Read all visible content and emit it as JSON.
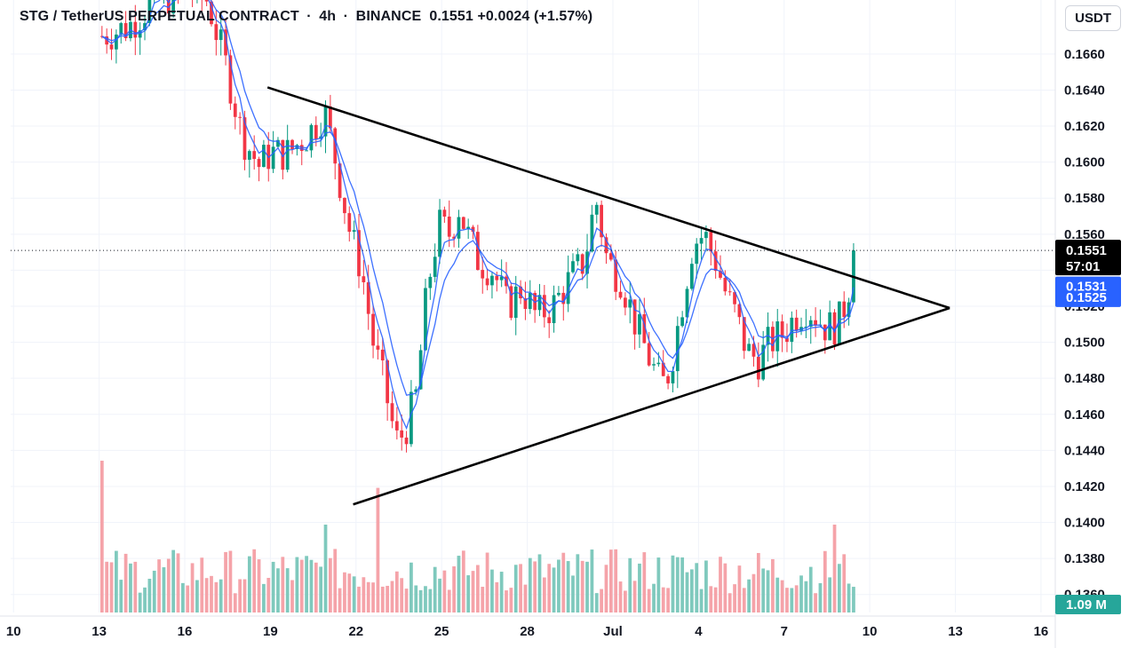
{
  "header": {
    "symbol": "STG / TetherUS PERPETUAL CONTRACT",
    "interval": "4h",
    "exchange": "BINANCE",
    "last": "0.1551",
    "change": "+0.0024",
    "change_pct": "(+1.57%)"
  },
  "currency_button": "USDT",
  "colors": {
    "up": "#089981",
    "down": "#f23645",
    "up_vol": "#7fc9bd",
    "down_vol": "#f5a3a9",
    "ma": "#2962ff",
    "trendline": "#000000",
    "price_tag": "#000000",
    "ma_tag": "#2962ff"
  },
  "price_tags": {
    "last_price": "0.1551",
    "countdown": "57:01",
    "ma_fast": "0.1531",
    "ma_slow": "0.1525",
    "volume": "1.09 M"
  },
  "chart_data": {
    "type": "candlestick",
    "title": "STG / TetherUS PERPETUAL CONTRACT · 4h · BINANCE",
    "y_ticks": [
      "0.1360",
      "0.1380",
      "0.1400",
      "0.1420",
      "0.1440",
      "0.1460",
      "0.1480",
      "0.1500",
      "0.1520",
      "0.1540",
      "0.1560",
      "0.1580",
      "0.1600",
      "0.1620",
      "0.1640",
      "0.1660"
    ],
    "ylim": [
      0.135,
      0.169
    ],
    "x_ticks": [
      "10",
      "13",
      "16",
      "19",
      "22",
      "25",
      "28",
      "Jul",
      "4",
      "7",
      "10",
      "13",
      "16"
    ],
    "x_tick_days": [
      10,
      13,
      16,
      19,
      22,
      25,
      28,
      31,
      34,
      37,
      40,
      43,
      46
    ],
    "xlim_days": [
      9.9,
      46.5
    ],
    "last_price_line": 0.1551,
    "ma_last": [
      0.1531,
      0.1525
    ],
    "waypoints": [
      [
        13.1,
        0.167
      ],
      [
        14.0,
        0.1675
      ],
      [
        15.0,
        0.169
      ],
      [
        16.2,
        0.1695
      ],
      [
        16.8,
        0.169
      ],
      [
        17.5,
        0.165
      ],
      [
        18.0,
        0.1615
      ],
      [
        18.6,
        0.1598
      ],
      [
        19.0,
        0.1605
      ],
      [
        19.6,
        0.1605
      ],
      [
        20.3,
        0.1615
      ],
      [
        20.9,
        0.1628
      ],
      [
        21.3,
        0.16
      ],
      [
        21.8,
        0.156
      ],
      [
        22.2,
        0.154
      ],
      [
        22.6,
        0.15
      ],
      [
        23.0,
        0.1475
      ],
      [
        23.4,
        0.1445
      ],
      [
        23.7,
        0.145
      ],
      [
        24.1,
        0.147
      ],
      [
        24.5,
        0.153
      ],
      [
        24.9,
        0.1565
      ],
      [
        25.3,
        0.156
      ],
      [
        25.6,
        0.1575
      ],
      [
        25.9,
        0.156
      ],
      [
        26.3,
        0.1545
      ],
      [
        26.8,
        0.154
      ],
      [
        27.3,
        0.152
      ],
      [
        27.8,
        0.153
      ],
      [
        28.3,
        0.1515
      ],
      [
        28.9,
        0.152
      ],
      [
        29.5,
        0.1535
      ],
      [
        30.0,
        0.1545
      ],
      [
        30.4,
        0.158
      ],
      [
        30.8,
        0.1545
      ],
      [
        31.3,
        0.1535
      ],
      [
        31.8,
        0.151
      ],
      [
        32.3,
        0.149
      ],
      [
        32.7,
        0.1475
      ],
      [
        33.0,
        0.1485
      ],
      [
        33.4,
        0.152
      ],
      [
        33.8,
        0.1555
      ],
      [
        34.2,
        0.156
      ],
      [
        34.6,
        0.1545
      ],
      [
        35.0,
        0.1525
      ],
      [
        35.3,
        0.1515
      ],
      [
        35.7,
        0.1495
      ],
      [
        36.1,
        0.149
      ],
      [
        36.5,
        0.15
      ],
      [
        37.0,
        0.1505
      ],
      [
        37.4,
        0.1515
      ],
      [
        37.8,
        0.152
      ],
      [
        38.1,
        0.1515
      ],
      [
        38.5,
        0.1508
      ],
      [
        38.9,
        0.151
      ],
      [
        39.2,
        0.1525
      ],
      [
        39.5,
        0.155
      ]
    ],
    "volume_spikes": [
      [
        13.1,
        0.95
      ],
      [
        20.9,
        0.55
      ],
      [
        22.7,
        0.78
      ],
      [
        38.8,
        0.55
      ]
    ],
    "trendlines": [
      {
        "name": "upper-resistance",
        "from": [
          18.9,
          0.16415
        ],
        "to": [
          42.8,
          0.1519
        ]
      },
      {
        "name": "lower-support",
        "from": [
          21.9,
          0.141
        ],
        "to": [
          42.8,
          0.1519
        ]
      }
    ]
  }
}
